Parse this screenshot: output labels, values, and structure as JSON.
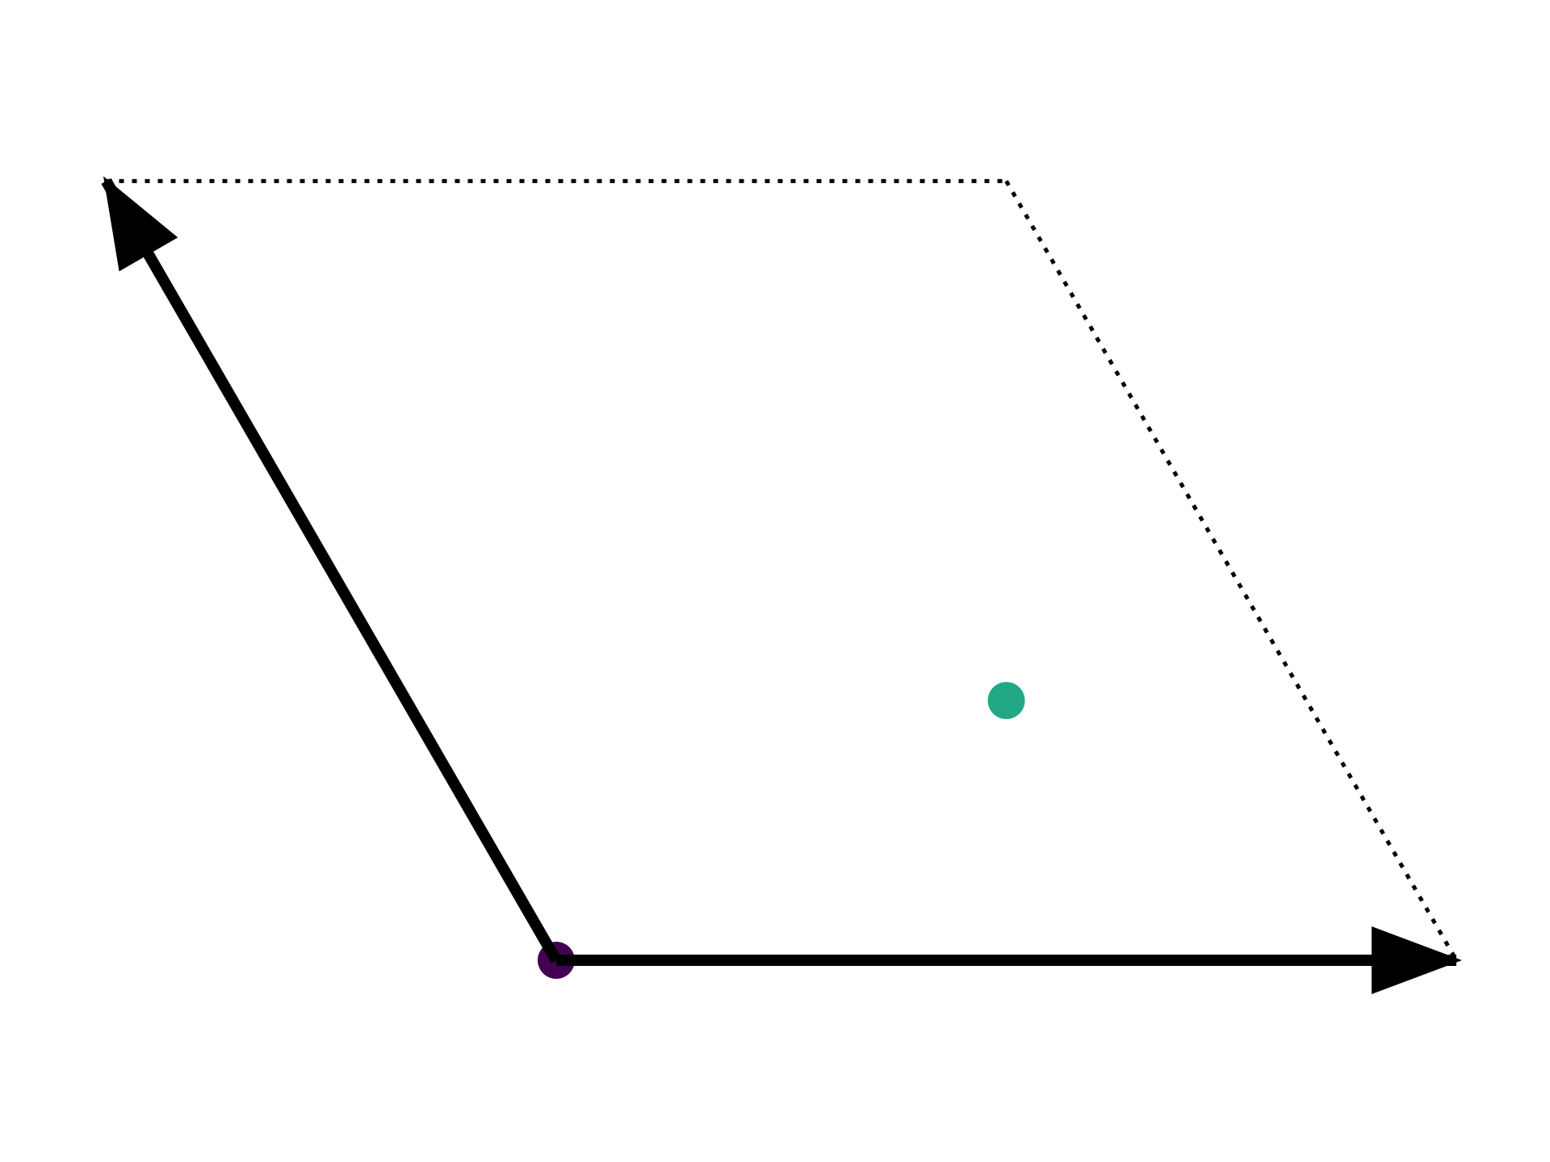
{
  "colors": {
    "background": "#ffffff",
    "vector": "#000000",
    "cell_outline": "#000000",
    "origin_atom": "#440154",
    "center_atom": "#22a884"
  },
  "diagram": {
    "kind": "unit-cell",
    "vectors": [
      {
        "id": "a1",
        "components": [
          1,
          0
        ]
      },
      {
        "id": "a2",
        "components": [
          -0.5,
          0.866
        ]
      }
    ],
    "atoms": [
      {
        "id": "atom-origin",
        "fractional": [
          0,
          0
        ],
        "color": "#440154"
      },
      {
        "id": "atom-center",
        "fractional": [
          0.6667,
          0.3333
        ],
        "color": "#22a884"
      }
    ],
    "cell_outline_style": "dotted"
  }
}
